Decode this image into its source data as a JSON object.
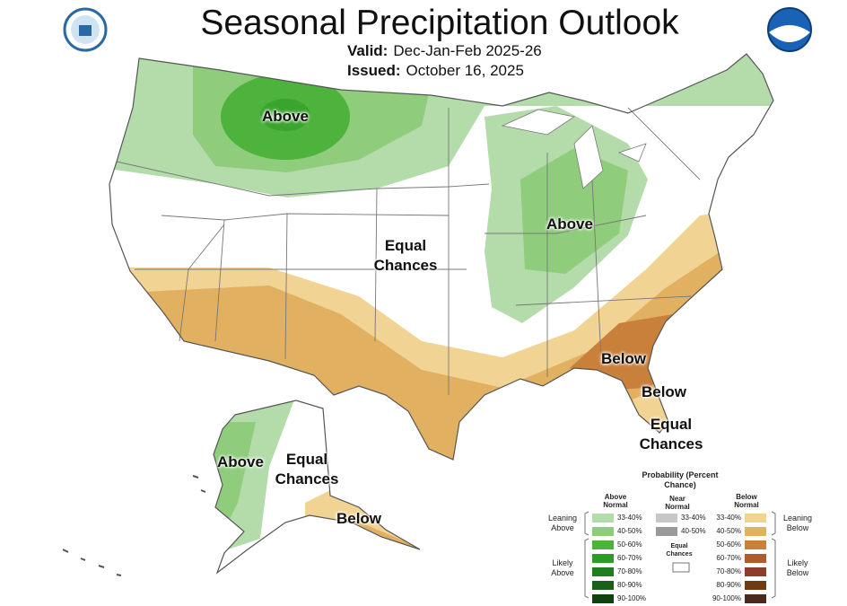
{
  "header": {
    "title": "Seasonal Precipitation Outlook",
    "valid_label": "Valid:",
    "valid": "Dec-Jan-Feb 2025-26",
    "issued_label": "Issued:",
    "issued": "October 16, 2025"
  },
  "map_labels": [
    "Above",
    "Equal Chances",
    "Above",
    "Below",
    "Below",
    "Equal Chances",
    "Above",
    "Equal Chances",
    "Below"
  ],
  "legend": {
    "title": "Probability (Percent Chance)",
    "columns": [
      {
        "header": "Above Normal",
        "items": [
          {
            "label": "33-40%",
            "color": "#b3dcaa"
          },
          {
            "label": "40-50%",
            "color": "#8fcc7c"
          },
          {
            "label": "50-60%",
            "color": "#4db33d"
          },
          {
            "label": "60-70%",
            "color": "#2e9a2a"
          },
          {
            "label": "70-80%",
            "color": "#1f7f1f"
          },
          {
            "label": "80-90%",
            "color": "#196019"
          },
          {
            "label": "90-100%",
            "color": "#0e430e"
          }
        ]
      },
      {
        "header": "Near Normal",
        "items": [
          {
            "label": "33-40%",
            "color": "#c8c8c8"
          },
          {
            "label": "40-50%",
            "color": "#999999"
          }
        ]
      },
      {
        "header": "Below Normal",
        "items": [
          {
            "label": "33-40%",
            "color": "#f1d393"
          },
          {
            "label": "40-50%",
            "color": "#e1b061"
          },
          {
            "label": "50-60%",
            "color": "#c9803b"
          },
          {
            "label": "60-70%",
            "color": "#ad5c2e"
          },
          {
            "label": "70-80%",
            "color": "#8e3d2a"
          },
          {
            "label": "80-90%",
            "color": "#6e3b12"
          },
          {
            "label": "90-100%",
            "color": "#4a2a20"
          }
        ]
      }
    ],
    "equal_chances": "Equal Chances",
    "groups": [
      "Leaning Above",
      "Likely Above",
      "Leaning Below",
      "Likely Below"
    ]
  }
}
